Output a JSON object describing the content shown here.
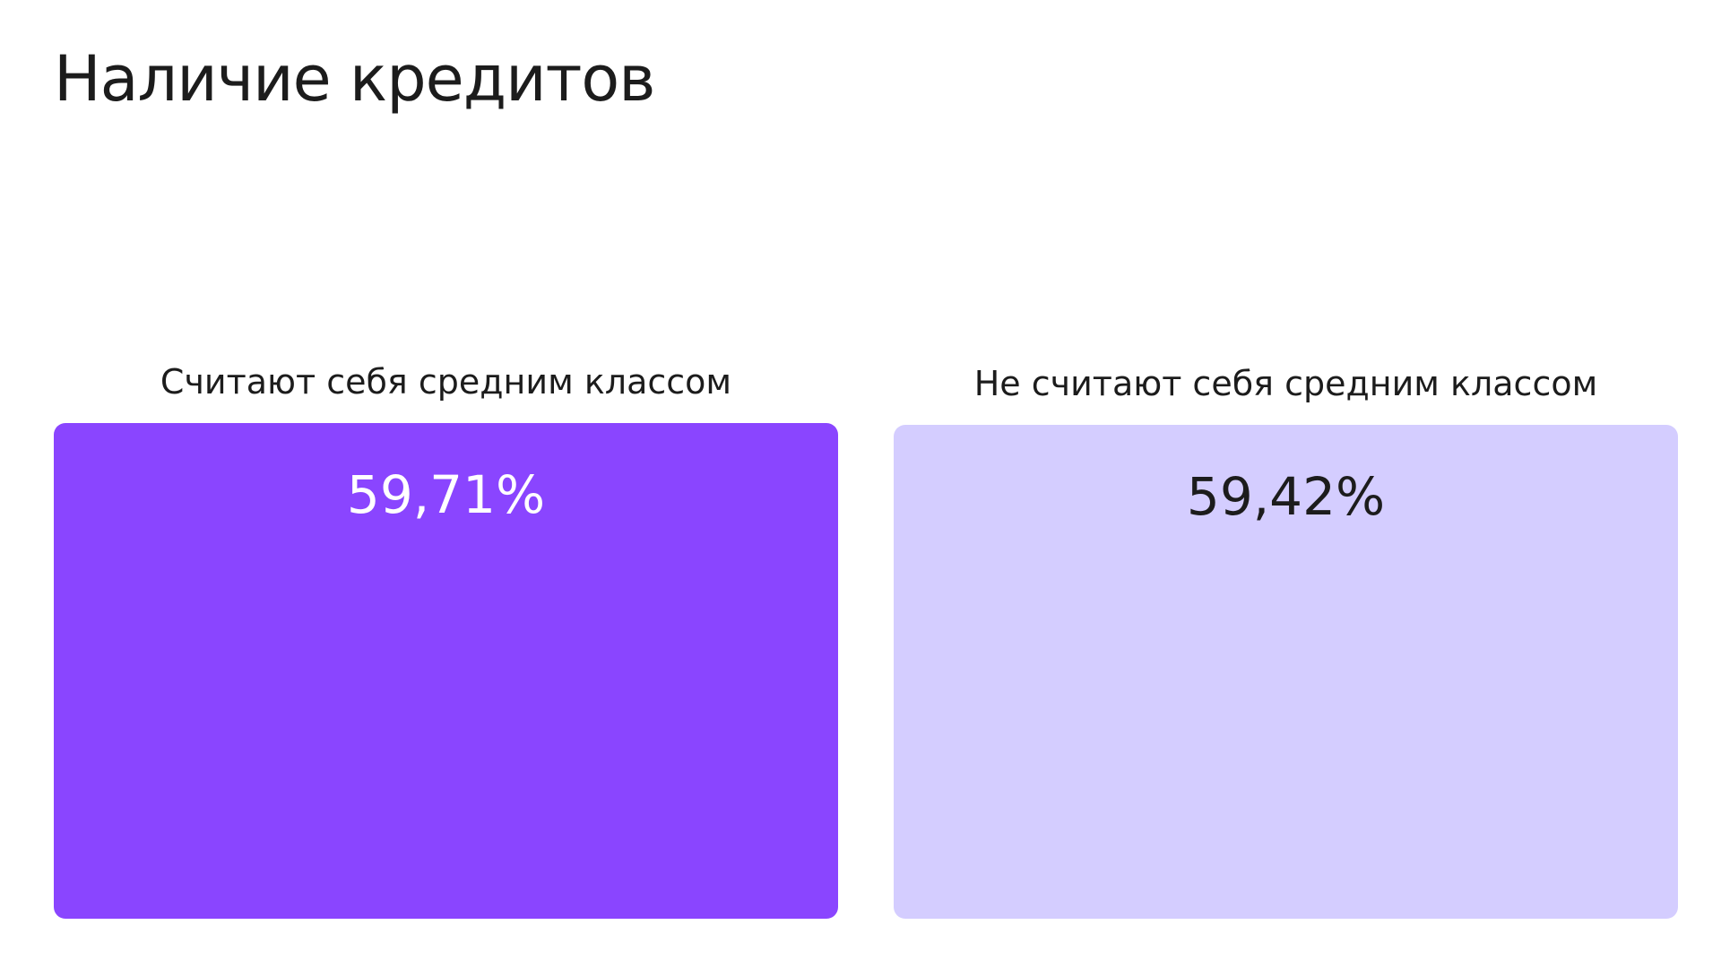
{
  "title": "Наличие кредитов",
  "colors": {
    "primary": "#8A45FF",
    "secondary": "#D4CDFF",
    "text_dark": "#1C1C1C",
    "text_light": "#FFFFFF"
  },
  "chart_data": {
    "type": "bar",
    "title": "Наличие кредитов",
    "categories": [
      "Считают себя средним классом",
      "Не считают себя средним классом"
    ],
    "values": [
      59.71,
      59.42
    ],
    "value_labels": [
      "59,71%",
      "59,42%"
    ],
    "unit": "%",
    "ylim": [
      0,
      60
    ],
    "grid": false,
    "legend": "none"
  }
}
